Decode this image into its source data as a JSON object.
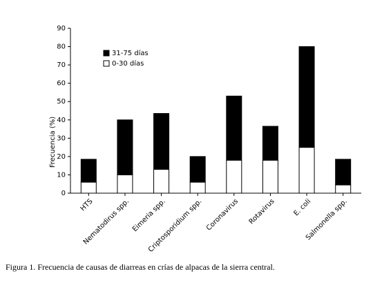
{
  "chart_data": {
    "type": "stacked_bar",
    "ylabel": "Frecuencia (%)",
    "caption": "Figura 1. Frecuencia de causas de diarreas en crías de alpacas de la sierra central.",
    "categories": [
      "HTS",
      "Nematodirus spp.",
      "Eimeria spp.",
      "Criptosporidium spp.",
      "Coronavirus",
      "Rotavirus",
      "E. coli",
      "Salmonella spp."
    ],
    "series": [
      {
        "name": "0-30 días",
        "color": "#ffffff",
        "values": [
          6,
          10,
          13,
          6,
          18,
          18,
          25,
          4.5
        ]
      },
      {
        "name": "31-75 días",
        "color": "#000000",
        "values": [
          12.5,
          30,
          30.5,
          14,
          35,
          18.5,
          55,
          14
        ]
      }
    ],
    "ylim": [
      0,
      90
    ],
    "yticks": [
      0,
      10,
      20,
      30,
      40,
      50,
      60,
      70,
      80,
      90
    ]
  }
}
